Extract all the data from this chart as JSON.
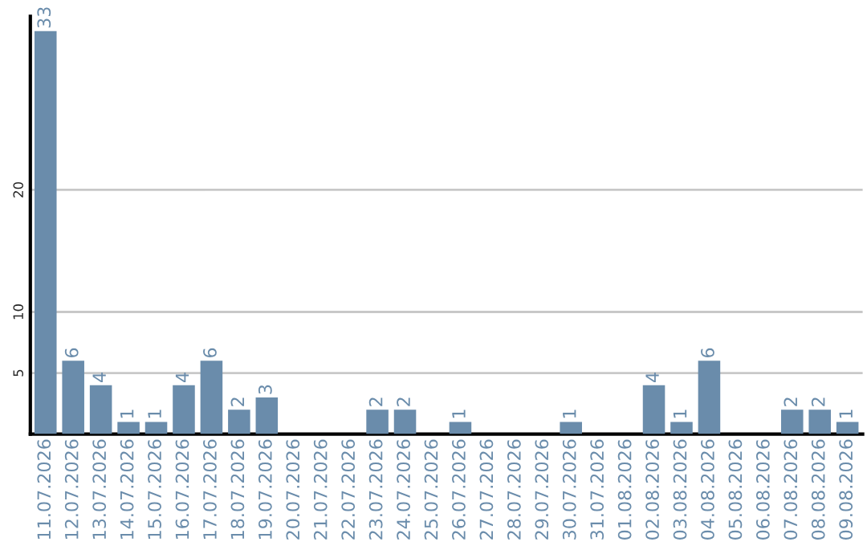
{
  "chart_data": {
    "type": "bar",
    "categories": [
      "11.07.2026",
      "12.07.2026",
      "13.07.2026",
      "14.07.2026",
      "15.07.2026",
      "16.07.2026",
      "17.07.2026",
      "18.07.2026",
      "19.07.2026",
      "20.07.2026",
      "21.07.2026",
      "22.07.2026",
      "23.07.2026",
      "24.07.2026",
      "25.07.2026",
      "26.07.2026",
      "27.07.2026",
      "28.07.2026",
      "29.07.2026",
      "30.07.2026",
      "31.07.2026",
      "01.08.2026",
      "02.08.2026",
      "03.08.2026",
      "04.08.2026",
      "05.08.2026",
      "06.08.2026",
      "07.08.2026",
      "08.08.2026",
      "09.08.2026"
    ],
    "values": [
      33,
      6,
      4,
      1,
      1,
      4,
      6,
      2,
      3,
      0,
      0,
      0,
      2,
      2,
      0,
      1,
      0,
      0,
      0,
      1,
      0,
      0,
      4,
      1,
      6,
      0,
      0,
      2,
      2,
      1
    ],
    "value_labels": [
      "33",
      "6",
      "4",
      "1",
      "1",
      "4",
      "6",
      "2",
      "3",
      null,
      null,
      null,
      "2",
      "2",
      null,
      "1",
      null,
      null,
      null,
      "1",
      null,
      null,
      "4",
      "1",
      "6",
      null,
      null,
      "2",
      "2",
      "1"
    ],
    "color": "#6a8cab",
    "ylim": [
      0,
      34.2
    ],
    "yticks": [
      5,
      10,
      20
    ],
    "grid": "y"
  }
}
